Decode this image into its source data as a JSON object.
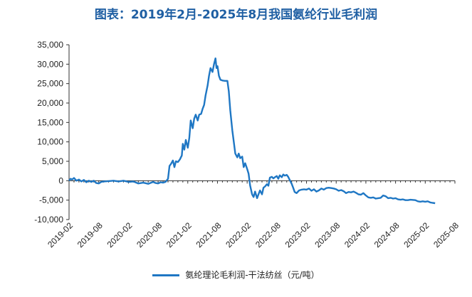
{
  "chart_data": {
    "type": "line",
    "title": "图表：2019年2月-2025年8月我国氨纶行业毛利润",
    "xlabel": "",
    "ylabel": "",
    "ylim": [
      -10000,
      35000
    ],
    "yticks": [
      35000,
      30000,
      25000,
      20000,
      15000,
      10000,
      5000,
      0,
      -5000,
      -10000
    ],
    "ytick_labels": [
      "35,000",
      "30,000",
      "25,000",
      "20,000",
      "15,000",
      "10,000",
      "5,000",
      "0",
      "-5,000",
      "-10,000"
    ],
    "xticks": [
      "2019-02",
      "2019-08",
      "2020-02",
      "2020-08",
      "2021-02",
      "2021-08",
      "2022-02",
      "2022-08",
      "2023-02",
      "2023-08",
      "2024-02",
      "2024-08",
      "2025-02",
      "2025-08"
    ],
    "legend": "top-bottom",
    "series": [
      {
        "name": "氨纶理论毛利润-干法纺丝（元/吨）",
        "color": "#1f77c4",
        "points": [
          [
            0,
            0
          ],
          [
            0.3,
            500
          ],
          [
            0.6,
            300
          ],
          [
            1,
            700
          ],
          [
            1.5,
            0
          ],
          [
            2,
            300
          ],
          [
            2.5,
            -200
          ],
          [
            3,
            200
          ],
          [
            3.5,
            -400
          ],
          [
            4,
            0
          ],
          [
            4.5,
            -300
          ],
          [
            5,
            0
          ],
          [
            5.5,
            -600
          ],
          [
            6,
            -700
          ],
          [
            6.5,
            -300
          ],
          [
            7,
            -200
          ],
          [
            8,
            -100
          ],
          [
            9,
            0
          ],
          [
            10,
            -200
          ],
          [
            11,
            0
          ],
          [
            12,
            -300
          ],
          [
            13,
            -200
          ],
          [
            14,
            -700
          ],
          [
            15,
            -500
          ],
          [
            16,
            -800
          ],
          [
            17,
            -300
          ],
          [
            17.5,
            -600
          ],
          [
            18,
            -700
          ],
          [
            18.5,
            -400
          ],
          [
            19,
            -500
          ],
          [
            19.5,
            -300
          ],
          [
            20,
            500
          ],
          [
            20.3,
            3800
          ],
          [
            20.6,
            4300
          ],
          [
            21,
            5200
          ],
          [
            21.3,
            3500
          ],
          [
            21.6,
            5000
          ],
          [
            22,
            4800
          ],
          [
            22.4,
            5500
          ],
          [
            22.8,
            6500
          ],
          [
            23,
            9500
          ],
          [
            23.3,
            8000
          ],
          [
            23.6,
            10500
          ],
          [
            24,
            8500
          ],
          [
            24.3,
            11000
          ],
          [
            24.6,
            15500
          ],
          [
            25,
            13500
          ],
          [
            25.3,
            16000
          ],
          [
            25.6,
            17000
          ],
          [
            26,
            15500
          ],
          [
            26.3,
            17000
          ],
          [
            26.7,
            17200
          ],
          [
            27,
            18500
          ],
          [
            27.3,
            19500
          ],
          [
            27.6,
            22000
          ],
          [
            28,
            24500
          ],
          [
            28.3,
            27000
          ],
          [
            28.6,
            29000
          ],
          [
            29,
            28000
          ],
          [
            29.3,
            30000
          ],
          [
            29.6,
            31500
          ],
          [
            29.8,
            29000
          ],
          [
            30,
            29500
          ],
          [
            30.3,
            27000
          ],
          [
            30.6,
            26000
          ],
          [
            31,
            25800
          ],
          [
            31.5,
            25700
          ],
          [
            32,
            25700
          ],
          [
            32.3,
            23000
          ],
          [
            32.6,
            18000
          ],
          [
            33,
            13000
          ],
          [
            33.3,
            10000
          ],
          [
            33.6,
            7000
          ],
          [
            34,
            6000
          ],
          [
            34.3,
            7000
          ],
          [
            34.6,
            5800
          ],
          [
            35,
            6200
          ],
          [
            35.3,
            3500
          ],
          [
            35.6,
            4500
          ],
          [
            36,
            3000
          ],
          [
            36.3,
            1800
          ],
          [
            36.6,
            -1200
          ],
          [
            37,
            -3500
          ],
          [
            37.3,
            -4200
          ],
          [
            37.6,
            -2800
          ],
          [
            38,
            -4500
          ],
          [
            38.3,
            -3500
          ],
          [
            38.6,
            -2500
          ],
          [
            39,
            -3500
          ],
          [
            39.3,
            -1800
          ],
          [
            39.6,
            -1500
          ],
          [
            40,
            -900
          ],
          [
            40.3,
            -1300
          ],
          [
            40.6,
            800
          ],
          [
            41,
            1000
          ],
          [
            41.3,
            600
          ],
          [
            41.6,
            900
          ],
          [
            42,
            1200
          ],
          [
            42.3,
            500
          ],
          [
            42.6,
            1400
          ],
          [
            43,
            900
          ],
          [
            43.3,
            1600
          ],
          [
            43.6,
            1300
          ],
          [
            44,
            1500
          ],
          [
            44.3,
            1000
          ],
          [
            44.6,
            200
          ],
          [
            45,
            -800
          ],
          [
            45.3,
            -1800
          ],
          [
            45.6,
            -2900
          ],
          [
            46,
            -3200
          ],
          [
            46.5,
            -2500
          ],
          [
            47,
            -2300
          ],
          [
            47.5,
            -2200
          ],
          [
            48,
            -2300
          ],
          [
            48.5,
            -2000
          ],
          [
            49,
            -2600
          ],
          [
            49.5,
            -2200
          ],
          [
            50,
            -2800
          ],
          [
            50.5,
            -2500
          ],
          [
            51,
            -2000
          ],
          [
            51.5,
            -2300
          ],
          [
            52,
            -1900
          ],
          [
            52.5,
            -1800
          ],
          [
            53,
            -1900
          ],
          [
            53.5,
            -2000
          ],
          [
            54,
            -2200
          ],
          [
            54.5,
            -2600
          ],
          [
            55,
            -2400
          ],
          [
            55.5,
            -2700
          ],
          [
            56,
            -3200
          ],
          [
            56.5,
            -2900
          ],
          [
            57,
            -3000
          ],
          [
            57.5,
            -2800
          ],
          [
            58,
            -3100
          ],
          [
            58.5,
            -3500
          ],
          [
            59,
            -3600
          ],
          [
            59.5,
            -3200
          ],
          [
            60,
            -3800
          ],
          [
            60.5,
            -4300
          ],
          [
            61,
            -4400
          ],
          [
            61.5,
            -4300
          ],
          [
            62,
            -4600
          ],
          [
            62.5,
            -4500
          ],
          [
            63,
            -4400
          ],
          [
            63.5,
            -3800
          ],
          [
            64,
            -4000
          ],
          [
            64.5,
            -4500
          ],
          [
            65,
            -4400
          ],
          [
            65.5,
            -4600
          ],
          [
            66,
            -4500
          ],
          [
            66.5,
            -4800
          ],
          [
            67,
            -4900
          ],
          [
            67.5,
            -4800
          ],
          [
            68,
            -5000
          ],
          [
            68.5,
            -5000
          ],
          [
            69,
            -4900
          ],
          [
            70,
            -5000
          ],
          [
            70.5,
            -5300
          ],
          [
            71,
            -5400
          ],
          [
            71.5,
            -5300
          ],
          [
            72,
            -5400
          ],
          [
            72.5,
            -5300
          ],
          [
            73,
            -5600
          ],
          [
            73.5,
            -5700
          ],
          [
            74,
            -5800
          ]
        ]
      }
    ]
  }
}
